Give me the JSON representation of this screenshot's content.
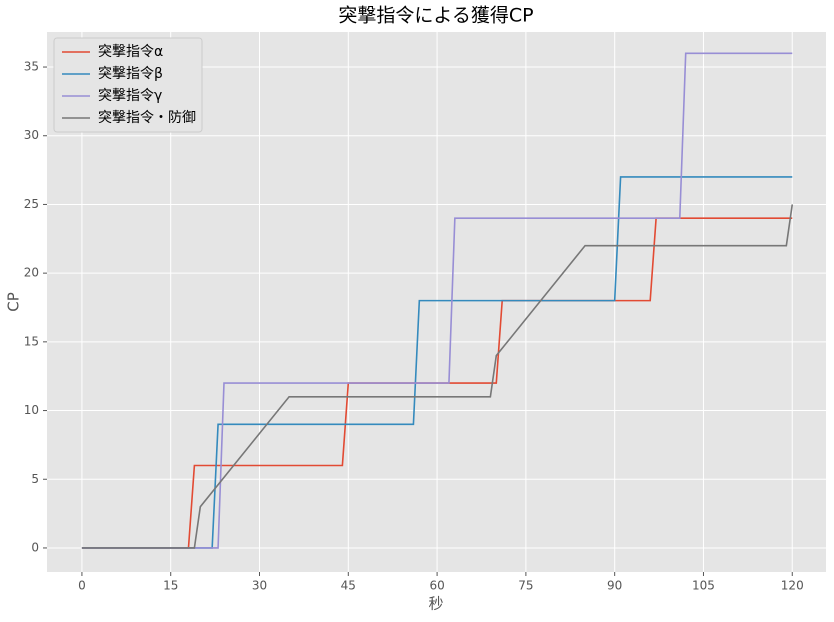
{
  "chart_data": {
    "type": "line",
    "title": "突撃指令による獲得CP",
    "x_label": "秒",
    "y_label": "CP",
    "xlim": [
      -5.9,
      125.7
    ],
    "ylim": [
      -1.75,
      37.55
    ],
    "xticks": [
      0,
      15,
      30,
      45,
      60,
      75,
      90,
      105,
      120
    ],
    "yticks": [
      0,
      5,
      10,
      15,
      20,
      25,
      30,
      35
    ],
    "grid": true,
    "legend": "upper-left",
    "series": [
      {
        "name": "突撃指令α",
        "color": "#E24A33",
        "x": [
          0,
          18,
          19,
          44,
          45,
          70,
          71,
          96,
          97,
          120
        ],
        "values": [
          0,
          0,
          6,
          6,
          12,
          12,
          18,
          18,
          24,
          24
        ]
      },
      {
        "name": "突撃指令β",
        "color": "#348ABD",
        "x": [
          0,
          22,
          23,
          56,
          57,
          90,
          91,
          120
        ],
        "values": [
          0,
          0,
          9,
          9,
          18,
          18,
          27,
          27
        ]
      },
      {
        "name": "突撃指令γ",
        "color": "#988ED5",
        "x": [
          0,
          23,
          24,
          62,
          63,
          101,
          102,
          120
        ],
        "values": [
          0,
          0,
          12,
          12,
          24,
          24,
          36,
          36
        ]
      },
      {
        "name": "突撃指令・防御",
        "color": "#777777",
        "x": [
          0,
          19,
          20,
          35,
          69,
          70,
          85,
          119,
          120
        ],
        "values": [
          0,
          0,
          3,
          11,
          11,
          14,
          22,
          22,
          25
        ]
      }
    ]
  }
}
